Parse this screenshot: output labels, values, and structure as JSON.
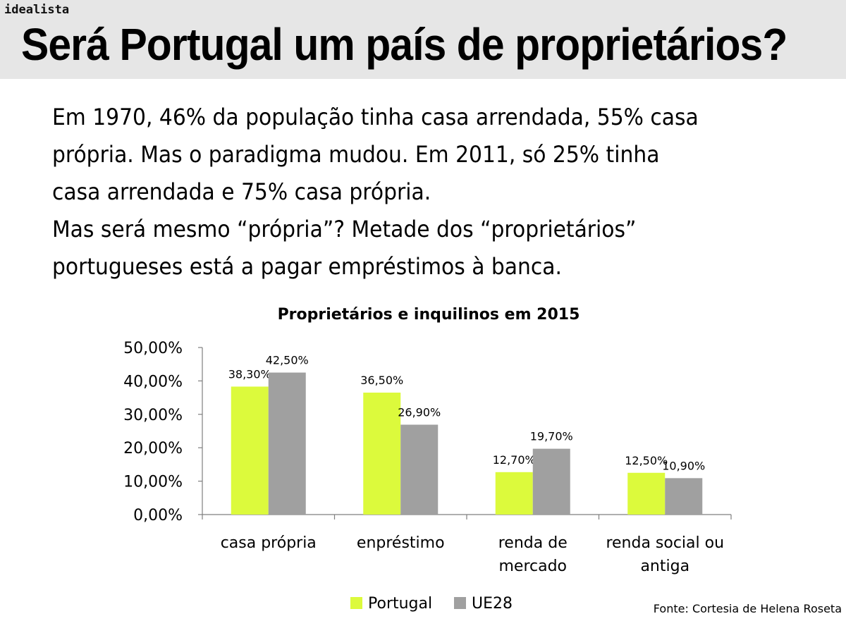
{
  "brand": "idealista",
  "headline": "Será Portugal um país de proprietários?",
  "intro_lines": [
    "Em 1970, 46% da população tinha casa arrendada, 55% casa",
    "própria. Mas o paradigma mudou. Em 2011, só 25% tinha",
    "casa arrendada e 75% casa própria.",
    "Mas será mesmo “própria”?  Metade dos “proprietários”",
    "portugueses está a pagar empréstimos à banca."
  ],
  "source": "Fonte: Cortesia de Helena Roseta",
  "chart_data": {
    "type": "bar",
    "title": "Proprietários e inquilinos em 2015",
    "categories": [
      [
        "casa própria"
      ],
      [
        "enpréstimo"
      ],
      [
        "renda de",
        "mercado"
      ],
      [
        "renda social ou",
        "antiga"
      ]
    ],
    "series": [
      {
        "name": "Portugal",
        "color": "#dcfa3c",
        "values": [
          38.3,
          36.5,
          12.7,
          12.5
        ],
        "labels": [
          "38,30%",
          "36,50%",
          "12,70%",
          "12,50%"
        ]
      },
      {
        "name": "UE28",
        "color": "#a0a0a0",
        "values": [
          42.5,
          26.9,
          19.7,
          10.9
        ],
        "labels": [
          "42,50%",
          "26,90%",
          "19,70%",
          "10,90%"
        ]
      }
    ],
    "yticks": [
      "0,00%",
      "10,00%",
      "20,00%",
      "30,00%",
      "40,00%",
      "50,00%"
    ],
    "ylim": [
      0,
      50
    ],
    "legend_position": "bottom"
  }
}
